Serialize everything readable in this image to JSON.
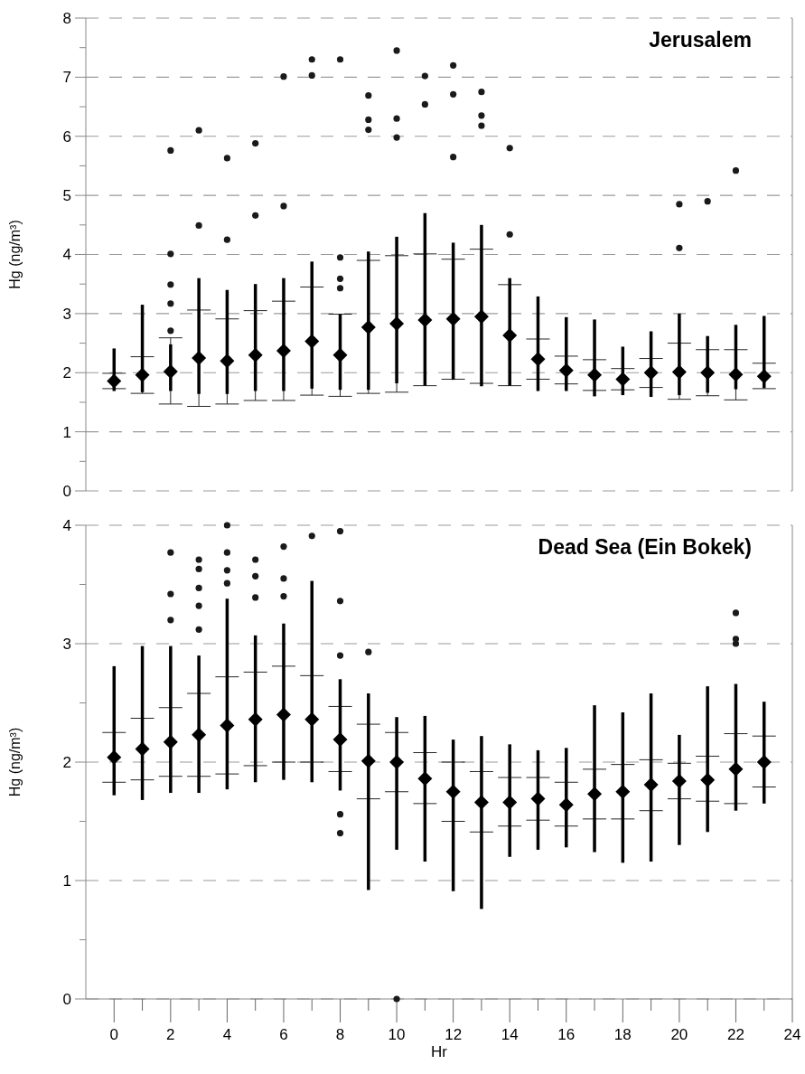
{
  "chart_data": [
    {
      "type": "scatter",
      "title": "Jerusalem",
      "ylabel": "Hg (ng/m³)",
      "xlim": [
        -1,
        24
      ],
      "ylim": [
        0,
        8
      ],
      "yticks": [
        0,
        {
          "value": 0.5,
          "label": null
        },
        1,
        {
          "value": 1.5,
          "label": null
        },
        2,
        {
          "value": 2.5,
          "label": null
        },
        3,
        {
          "value": 3.5,
          "label": null
        },
        4,
        {
          "value": 4.5,
          "label": null
        },
        5,
        {
          "value": 5.5,
          "label": null
        },
        6,
        {
          "value": 6.5,
          "label": null
        },
        7,
        {
          "value": 7.5,
          "label": null
        },
        8
      ],
      "grid": "y",
      "tick_labels": "y",
      "x": [
        0,
        1,
        2,
        3,
        4,
        5,
        6,
        7,
        8,
        9,
        10,
        11,
        12,
        13,
        14,
        15,
        16,
        17,
        18,
        19,
        20,
        21,
        22,
        23
      ],
      "series": [
        {
          "type": "bar",
          "color": "#000000",
          "base": [
            1.69,
            1.67,
            1.69,
            1.64,
            1.64,
            1.69,
            1.69,
            1.73,
            1.71,
            1.71,
            1.82,
            1.78,
            1.88,
            1.77,
            1.78,
            1.69,
            1.69,
            1.6,
            1.62,
            1.59,
            1.62,
            1.66,
            1.72,
            1.74
          ],
          "values": [
            0.72,
            1.48,
            0.79,
            1.96,
            1.76,
            1.81,
            1.91,
            2.15,
            1.28,
            2.34,
            2.48,
            2.92,
            2.32,
            2.73,
            1.82,
            1.6,
            1.25,
            1.3,
            0.82,
            1.11,
            1.38,
            0.96,
            1.09,
            1.22
          ]
        },
        {
          "color": "#1a1a1a",
          "marker": "circle",
          "x": [
            2,
            2,
            2,
            2,
            2,
            3,
            3,
            4,
            4,
            5,
            5,
            6,
            6,
            7,
            7,
            8,
            8,
            8,
            8,
            9,
            9,
            9,
            10,
            10,
            10,
            11,
            11,
            12,
            12,
            12,
            13,
            13,
            13,
            14,
            14,
            20,
            20,
            21,
            22
          ],
          "values": [
            2.71,
            3.17,
            3.49,
            4.01,
            5.76,
            4.49,
            6.1,
            4.25,
            5.63,
            4.66,
            5.88,
            4.82,
            7.01,
            7.03,
            7.3,
            3.43,
            3.59,
            3.95,
            7.3,
            6.11,
            6.28,
            6.69,
            5.98,
            6.3,
            7.45,
            6.54,
            7.02,
            5.65,
            6.71,
            7.2,
            6.18,
            6.35,
            6.75,
            4.34,
            5.8,
            4.11,
            4.85,
            4.9,
            5.42
          ]
        },
        {
          "color": "#000000",
          "marker": "diamond",
          "values": [
            1.86,
            1.96,
            2.02,
            2.25,
            2.2,
            2.3,
            2.37,
            2.53,
            2.3,
            2.77,
            2.83,
            2.89,
            2.91,
            2.95,
            2.63,
            2.23,
            2.04,
            1.96,
            1.89,
            2.0,
            2.01,
            2.0,
            1.97,
            1.94
          ],
          "errors": [
            [
              1.73,
              1.99
            ],
            [
              1.65,
              2.27
            ],
            [
              1.47,
              2.59
            ],
            [
              1.43,
              3.06
            ],
            [
              1.47,
              2.91
            ],
            [
              1.53,
              3.05
            ],
            [
              1.53,
              3.21
            ],
            [
              1.62,
              3.45
            ],
            [
              1.6,
              2.99
            ],
            [
              1.65,
              3.9
            ],
            [
              1.67,
              3.98
            ],
            [
              1.78,
              4.01
            ],
            [
              1.89,
              3.92
            ],
            [
              1.82,
              4.09
            ],
            [
              1.78,
              3.49
            ],
            [
              1.89,
              2.57
            ],
            [
              1.81,
              2.28
            ],
            [
              1.7,
              2.22
            ],
            [
              1.71,
              2.07
            ],
            [
              1.75,
              2.24
            ],
            [
              1.55,
              2.5
            ],
            [
              1.61,
              2.39
            ],
            [
              1.54,
              2.39
            ],
            [
              1.73,
              2.16
            ]
          ]
        }
      ]
    },
    {
      "type": "scatter",
      "title": "Dead Sea (Ein Bokek)",
      "xlabel": "Hr",
      "ylabel": "Hg (ng/m³)",
      "xlim": [
        -1,
        24
      ],
      "xticks": [
        0,
        {
          "value": 1,
          "label": null
        },
        2,
        {
          "value": 3,
          "label": null
        },
        4,
        {
          "value": 5,
          "label": null
        },
        6,
        {
          "value": 7,
          "label": null
        },
        8,
        {
          "value": 9,
          "label": null
        },
        10,
        {
          "value": 11,
          "label": null
        },
        12,
        {
          "value": 13,
          "label": null
        },
        14,
        {
          "value": 15,
          "label": null
        },
        16,
        {
          "value": 17,
          "label": null
        },
        18,
        {
          "value": 19,
          "label": null
        },
        20,
        {
          "value": 21,
          "label": null
        },
        22,
        {
          "value": 23,
          "label": null
        },
        24
      ],
      "ylim": [
        0,
        4
      ],
      "yticks": [
        0,
        {
          "value": 0.5,
          "label": null
        },
        1,
        {
          "value": 1.5,
          "label": null
        },
        2,
        {
          "value": 2.5,
          "label": null
        },
        3,
        {
          "value": 3.5,
          "label": null
        },
        4
      ],
      "grid": "y",
      "x": [
        0,
        1,
        2,
        3,
        4,
        5,
        6,
        7,
        8,
        9,
        10,
        11,
        12,
        13,
        14,
        15,
        16,
        17,
        18,
        19,
        20,
        21,
        22,
        23
      ],
      "series": [
        {
          "type": "bar",
          "color": "#000000",
          "base": [
            1.72,
            1.68,
            1.74,
            1.74,
            1.77,
            1.83,
            1.85,
            1.83,
            1.76,
            0.92,
            1.26,
            1.16,
            0.91,
            0.76,
            1.2,
            1.26,
            1.28,
            1.24,
            1.15,
            1.16,
            1.3,
            1.41,
            1.59,
            1.65
          ],
          "values": [
            1.09,
            1.3,
            1.24,
            1.16,
            1.61,
            1.24,
            1.32,
            1.7,
            0.94,
            1.66,
            1.12,
            1.23,
            1.28,
            1.46,
            0.95,
            0.84,
            0.84,
            1.24,
            1.27,
            1.42,
            0.93,
            1.23,
            1.07,
            0.86
          ]
        },
        {
          "color": "#1a1a1a",
          "marker": "circle",
          "x": [
            2,
            2,
            2,
            3,
            3,
            3,
            3,
            3,
            4,
            4,
            4,
            4,
            5,
            5,
            5,
            6,
            6,
            6,
            7,
            8,
            8,
            8,
            8,
            8,
            9,
            10,
            22,
            22,
            22
          ],
          "values": [
            3.2,
            3.42,
            3.77,
            3.12,
            3.32,
            3.47,
            3.63,
            3.71,
            3.51,
            3.62,
            3.77,
            4.0,
            3.39,
            3.57,
            3.71,
            3.4,
            3.55,
            3.82,
            3.91,
            1.4,
            1.56,
            2.9,
            3.36,
            3.95,
            2.93,
            0,
            3.0,
            3.04,
            3.26
          ]
        },
        {
          "color": "#000000",
          "marker": "diamond",
          "values": [
            2.04,
            2.11,
            2.17,
            2.23,
            2.31,
            2.36,
            2.4,
            2.36,
            2.19,
            2.01,
            2.0,
            1.86,
            1.75,
            1.66,
            1.66,
            1.69,
            1.64,
            1.73,
            1.75,
            1.81,
            1.84,
            1.85,
            1.94,
            2.0
          ],
          "errors": [
            [
              1.83,
              2.25
            ],
            [
              1.85,
              2.37
            ],
            [
              1.88,
              2.46
            ],
            [
              1.88,
              2.58
            ],
            [
              1.9,
              2.72
            ],
            [
              1.97,
              2.76
            ],
            [
              2.0,
              2.81
            ],
            [
              2.0,
              2.73
            ],
            [
              1.92,
              2.47
            ],
            [
              1.69,
              2.32
            ],
            [
              1.75,
              2.25
            ],
            [
              1.65,
              2.08
            ],
            [
              1.5,
              2.0
            ],
            [
              1.41,
              1.92
            ],
            [
              1.46,
              1.87
            ],
            [
              1.51,
              1.87
            ],
            [
              1.46,
              1.83
            ],
            [
              1.52,
              1.94
            ],
            [
              1.52,
              1.98
            ],
            [
              1.59,
              2.02
            ],
            [
              1.69,
              1.99
            ],
            [
              1.67,
              2.05
            ],
            [
              1.65,
              2.24
            ],
            [
              1.79,
              2.22
            ]
          ]
        }
      ]
    }
  ]
}
